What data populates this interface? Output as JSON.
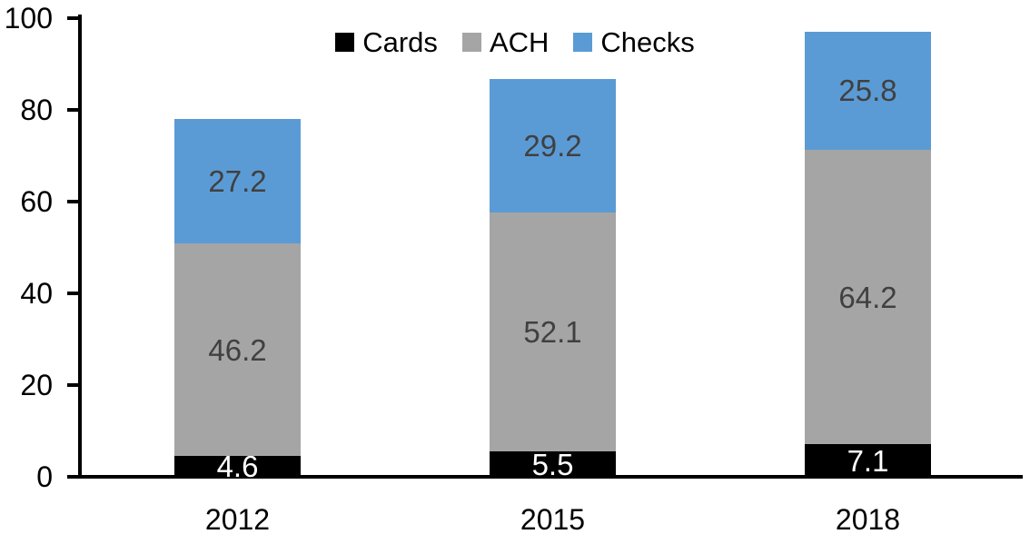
{
  "chart_data": {
    "type": "bar",
    "stacked": true,
    "title": "",
    "categories": [
      "2012",
      "2015",
      "2018"
    ],
    "series": [
      {
        "name": "Cards",
        "color": "#000000",
        "label_color": "#ffffff",
        "values": [
          4.6,
          5.5,
          7.1
        ]
      },
      {
        "name": "ACH",
        "color": "#a5a5a5",
        "label_color": "#404040",
        "values": [
          46.2,
          52.1,
          64.2
        ]
      },
      {
        "name": "Checks",
        "color": "#5b9bd5",
        "label_color": "#404040",
        "values": [
          27.2,
          29.2,
          25.8
        ]
      }
    ],
    "xlabel": "",
    "ylabel": "",
    "ylim": [
      0,
      100
    ],
    "yticks": [
      0,
      20,
      40,
      60,
      80,
      100
    ],
    "grid": false,
    "legend_position": "top",
    "axis_color": "#000000",
    "background_color": "#ffffff",
    "data_label_decimals": 1
  }
}
